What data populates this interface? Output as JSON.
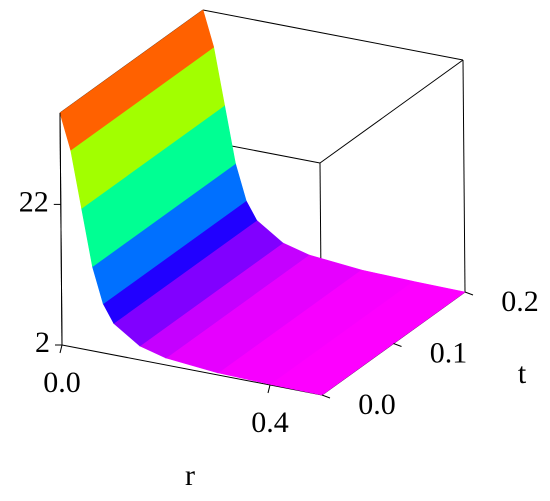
{
  "chart_data": {
    "type": "surface",
    "xlabel": "r",
    "ylabel": "t",
    "x": [
      0,
      0.02,
      0.04,
      0.06,
      0.08,
      0.1,
      0.15,
      0.2,
      0.3,
      0.4,
      0.5
    ],
    "values": [
      35,
      30,
      22,
      14,
      9,
      6.5,
      4,
      3,
      2.3,
      2.1,
      2
    ],
    "xlim": [
      0,
      0.5
    ],
    "ylim": [
      0,
      0.2
    ],
    "zlim": [
      2,
      35
    ],
    "xticks": [
      {
        "value": 0,
        "label": "0.0"
      },
      {
        "value": 0.4,
        "label": "0.4"
      }
    ],
    "yticks": [
      {
        "value": 0,
        "label": "0.0"
      },
      {
        "value": 0.1,
        "label": "0.1"
      },
      {
        "value": 0.2,
        "label": "0.2"
      }
    ],
    "zticks": [
      2,
      22
    ]
  }
}
